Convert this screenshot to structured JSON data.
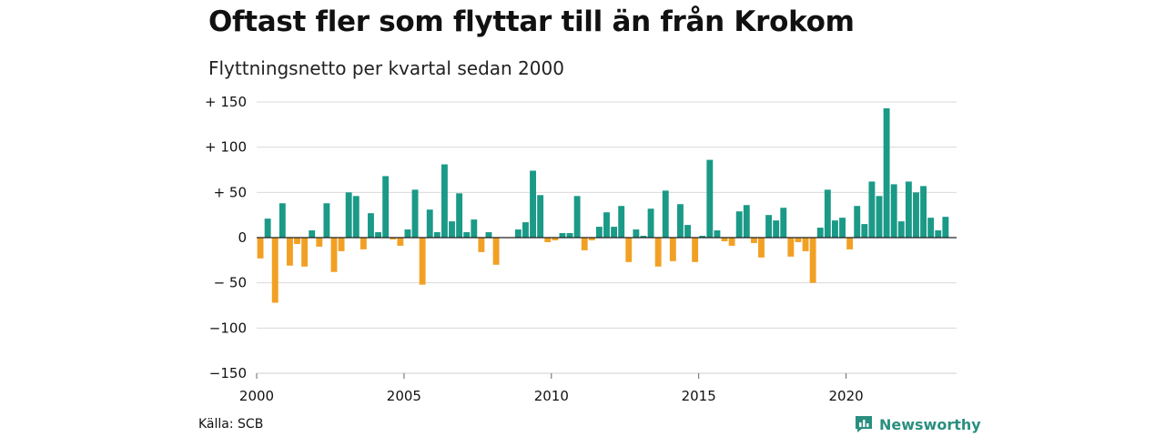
{
  "header": {
    "title": "Oftast fler som flyttar till än från Krokom",
    "subtitle": "Flyttningsnetto per kvartal sedan 2000"
  },
  "footer": {
    "source": "Källa: SCB",
    "brand": "Newsworthy"
  },
  "colors": {
    "positive": "#1a9a87",
    "negative": "#f2a024",
    "grid": "#d9d9d9",
    "brand": "#2a8f7f"
  },
  "chart_data": {
    "type": "bar",
    "title": "Oftast fler som flyttar till än från Krokom",
    "subtitle": "Flyttningsnetto per kvartal sedan 2000",
    "ylim": [
      -150,
      150
    ],
    "xlim": [
      2000,
      2023.75
    ],
    "y_ticks": [
      150,
      100,
      50,
      0,
      -50,
      -100,
      -150
    ],
    "y_tick_labels": [
      "+ 150",
      "+ 100",
      "+  50",
      "0",
      "− 50",
      "−100",
      "−150"
    ],
    "x_ticks": [
      2000,
      2005,
      2010,
      2015,
      2020
    ],
    "x_tick_labels": [
      "2000",
      "2005",
      "2010",
      "2015",
      "2020"
    ],
    "grid": true,
    "legend": "none",
    "series": [
      {
        "start": "2000 Q1",
        "frequency": "quarterly",
        "values": [
          -23,
          21,
          -72,
          38,
          -31,
          -7,
          -32,
          8,
          -10,
          38,
          -38,
          -15,
          50,
          46,
          -13,
          27,
          6,
          68,
          -2,
          -9,
          9,
          53,
          -52,
          31,
          6,
          81,
          18,
          49,
          6,
          20,
          -16,
          6,
          -30,
          0,
          0,
          9,
          17,
          74,
          47,
          -5,
          -3,
          5,
          5,
          46,
          -14,
          -3,
          12,
          28,
          12,
          35,
          -27,
          9,
          2,
          32,
          -32,
          52,
          -26,
          37,
          14,
          -27,
          2,
          86,
          8,
          -4,
          -9,
          29,
          36,
          -6,
          -22,
          25,
          19,
          33,
          -21,
          -5,
          -15,
          -50,
          11,
          53,
          19,
          22,
          -13,
          35,
          15,
          62,
          46,
          143,
          59,
          18,
          62,
          50,
          57,
          22,
          8,
          23
        ]
      }
    ]
  }
}
